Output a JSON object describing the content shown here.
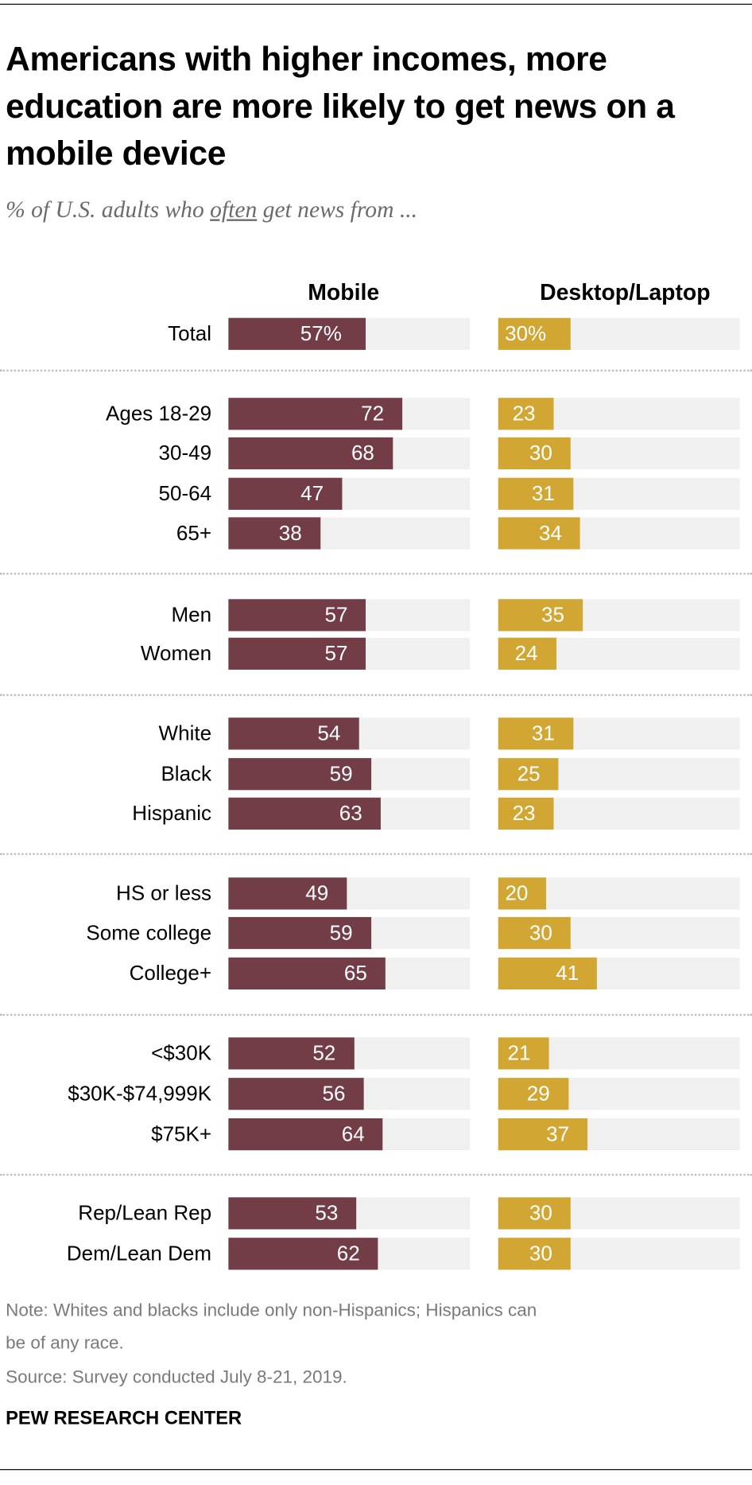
{
  "title": "Americans with higher incomes, more education are more likely to get news on a mobile device",
  "subtitle": {
    "before": "% of U.S. adults who ",
    "underlined": "often",
    "after": " get news from ..."
  },
  "colors": {
    "mobile": "#733d47",
    "desktop": "#d2a633",
    "track": "#f0f0f0"
  },
  "chart_data": {
    "type": "bar",
    "orientation": "horizontal",
    "xlim": [
      0,
      100
    ],
    "column_headers": [
      "Mobile",
      "Desktop/Laptop"
    ],
    "categories": [
      "Total",
      "Ages 18-29",
      "30-49",
      "50-64",
      "65+",
      "Men",
      "Women",
      "White",
      "Black",
      "Hispanic",
      "HS or less",
      "Some college",
      "College+",
      "<$30K",
      "$30K-$74,999K",
      "$75K+",
      "Rep/Lean Rep",
      "Dem/Lean Dem"
    ],
    "groups": [
      [
        0
      ],
      [
        1,
        2,
        3,
        4
      ],
      [
        5,
        6
      ],
      [
        7,
        8,
        9
      ],
      [
        10,
        11,
        12
      ],
      [
        13,
        14,
        15
      ],
      [
        16,
        17
      ]
    ],
    "series": [
      {
        "name": "Mobile",
        "values": [
          57,
          72,
          68,
          47,
          38,
          57,
          57,
          54,
          59,
          63,
          49,
          59,
          65,
          52,
          56,
          64,
          53,
          62
        ]
      },
      {
        "name": "Desktop/Laptop",
        "values": [
          30,
          23,
          30,
          31,
          34,
          35,
          24,
          31,
          25,
          23,
          20,
          30,
          41,
          21,
          29,
          37,
          30,
          30
        ]
      }
    ],
    "first_row_suffix": "%"
  },
  "notes": [
    "Note: Whites and blacks include only non-Hispanics; Hispanics can",
    "be of any race.",
    "Source: Survey conducted July 8-21, 2019."
  ],
  "source_logo": "PEW RESEARCH CENTER"
}
